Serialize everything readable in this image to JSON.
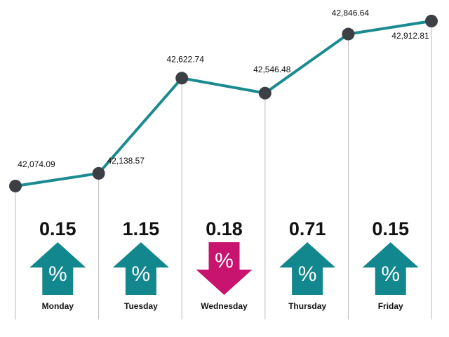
{
  "chart_data": {
    "type": "line",
    "categories": [
      null,
      null,
      null,
      null,
      null,
      null
    ],
    "values": [
      42074.09,
      42138.57,
      42622.74,
      42546.48,
      42846.64,
      42912.81
    ],
    "value_labels": [
      "42,074.09",
      "42,138.57",
      "42,622.74",
      "42,546.48",
      "42,846.64",
      "42,912.81"
    ],
    "color": "#1b8b90",
    "marker_color": "#3c3f44",
    "changes": {
      "categories": [
        "Monday",
        "Tuesday",
        "Wednesday",
        "Thursday",
        "Friday"
      ],
      "values": [
        0.15,
        1.15,
        0.18,
        0.71,
        0.15
      ],
      "directions": [
        "up",
        "up",
        "down",
        "up",
        "up"
      ],
      "symbol": "%",
      "up_color": "#12878d",
      "down_color": "#c8136f"
    }
  }
}
